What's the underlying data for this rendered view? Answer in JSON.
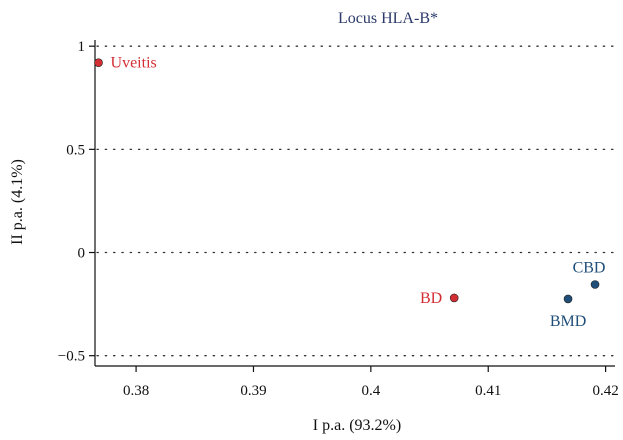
{
  "chart_data": {
    "type": "scatter",
    "title": "Locus HLA-B*",
    "xlabel": "I p.a. (93.2%)",
    "ylabel": "II p.a. (4.1%)",
    "xlim": [
      0.3765,
      0.4208
    ],
    "ylim": [
      -0.55,
      1.03
    ],
    "xticks": [
      "0.38",
      "0.39",
      "0.4",
      "0.41",
      "0.42"
    ],
    "xtick_values": [
      0.38,
      0.39,
      0.4,
      0.41,
      0.42
    ],
    "yticks": [
      "1",
      "0.5",
      "0",
      "−0.5"
    ],
    "ytick_values": [
      1,
      0.5,
      0,
      -0.5
    ],
    "grid": "horizontal-dotted",
    "points": [
      {
        "label": "Uveitis",
        "x": 0.3768,
        "y": 0.92,
        "color": "#d42e35",
        "label_side": "right"
      },
      {
        "label": "BD",
        "x": 0.4071,
        "y": -0.22,
        "color": "#d42e35",
        "label_side": "left"
      },
      {
        "label": "BMD",
        "x": 0.4168,
        "y": -0.225,
        "color": "#1f4e79",
        "label_side": "below"
      },
      {
        "label": "CBD",
        "x": 0.4191,
        "y": -0.155,
        "color": "#1f4e79",
        "label_side": "above"
      }
    ],
    "colors": {
      "title": "#2b3a6b",
      "red": "#d42e35",
      "blue": "#1f4e79"
    }
  }
}
